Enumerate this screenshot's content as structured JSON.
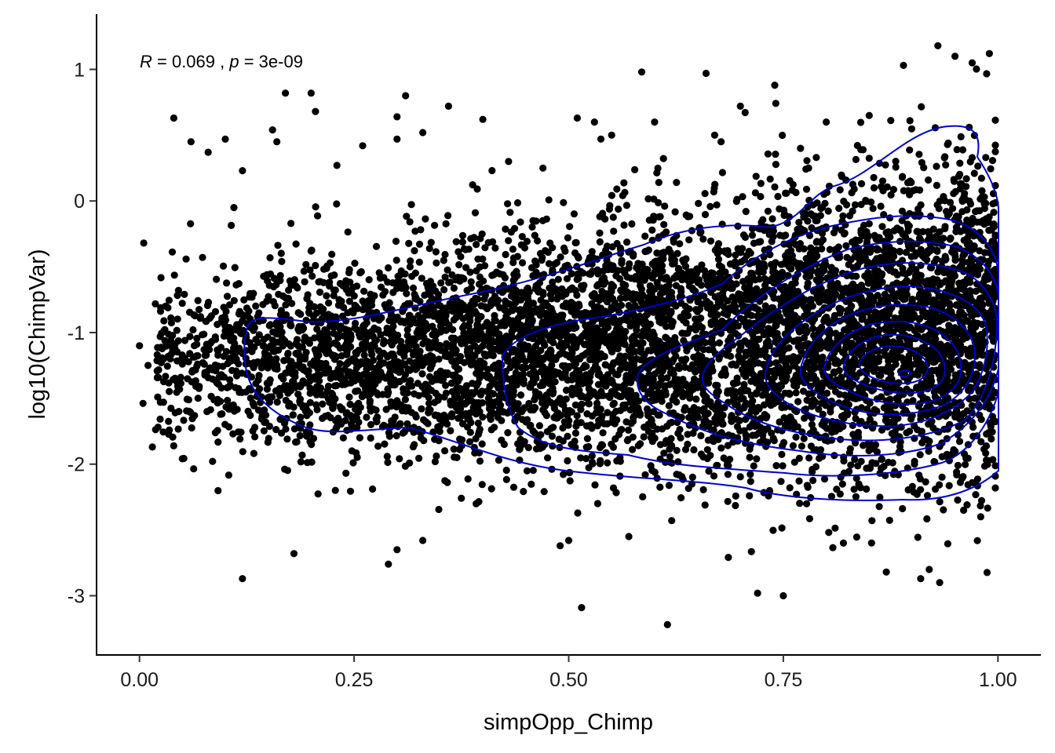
{
  "chart_data": {
    "type": "scatter",
    "title": "",
    "xlabel": "simpOpp_Chimp",
    "ylabel": "log10(ChimpVar)",
    "xlim": [
      -0.05,
      1.05
    ],
    "ylim": [
      -3.45,
      1.42
    ],
    "x_ticks": [
      0.0,
      0.25,
      0.5,
      0.75,
      1.0
    ],
    "x_tick_labels": [
      "0.00",
      "0.25",
      "0.50",
      "0.75",
      "1.00"
    ],
    "y_ticks": [
      -3,
      -2,
      -1,
      0,
      1
    ],
    "y_tick_labels": [
      "-3",
      "-2",
      "-1",
      "0",
      "1"
    ],
    "grid": false,
    "annotation": {
      "r_symbol": "R",
      "r_value": " = 0.069 , ",
      "p_symbol": "p",
      "p_value": " = 3e-09"
    },
    "point_color": "#000000",
    "contour_color": "#0000cc",
    "points": [
      [
        0.0,
        -1.1
      ],
      [
        0.005,
        -0.32
      ],
      [
        0.01,
        -1.25
      ],
      [
        0.015,
        -1.87
      ],
      [
        0.04,
        0.63
      ],
      [
        0.06,
        0.45
      ],
      [
        0.08,
        0.37
      ],
      [
        0.1,
        0.47
      ],
      [
        0.11,
        -0.05
      ],
      [
        0.12,
        -2.87
      ],
      [
        0.12,
        0.23
      ],
      [
        0.155,
        0.54
      ],
      [
        0.16,
        0.45
      ],
      [
        0.17,
        0.82
      ],
      [
        0.18,
        -2.68
      ],
      [
        0.2,
        0.82
      ],
      [
        0.205,
        0.68
      ],
      [
        0.23,
        0.27
      ],
      [
        0.26,
        0.42
      ],
      [
        0.29,
        -2.76
      ],
      [
        0.3,
        0.47
      ],
      [
        0.3,
        0.64
      ],
      [
        0.31,
        0.8
      ],
      [
        0.3,
        -2.65
      ],
      [
        0.33,
        0.52
      ],
      [
        0.33,
        -2.58
      ],
      [
        0.36,
        0.72
      ],
      [
        0.4,
        0.62
      ],
      [
        0.43,
        0.3
      ],
      [
        0.47,
        0.25
      ],
      [
        0.49,
        -2.62
      ],
      [
        0.5,
        -2.58
      ],
      [
        0.51,
        0.63
      ],
      [
        0.515,
        -3.09
      ],
      [
        0.53,
        0.6
      ],
      [
        0.55,
        0.5
      ],
      [
        0.57,
        -2.55
      ],
      [
        0.585,
        0.98
      ],
      [
        0.6,
        0.6
      ],
      [
        0.615,
        -3.22
      ],
      [
        0.66,
        0.97
      ],
      [
        0.67,
        0.5
      ],
      [
        0.7,
        0.72
      ],
      [
        0.72,
        -2.98
      ],
      [
        0.74,
        0.88
      ],
      [
        0.75,
        -3.0
      ],
      [
        0.77,
        0.4
      ],
      [
        0.8,
        0.6
      ],
      [
        0.82,
        -2.6
      ],
      [
        0.85,
        0.65
      ],
      [
        0.87,
        -2.82
      ],
      [
        0.89,
        1.03
      ],
      [
        0.91,
        -2.87
      ],
      [
        0.93,
        1.18
      ],
      [
        0.95,
        1.1
      ],
      [
        0.97,
        1.05
      ],
      [
        0.99,
        1.12
      ],
      [
        0.92,
        -2.8
      ],
      [
        0.96,
        -2.35
      ],
      [
        0.98,
        -2.4
      ]
    ]
  }
}
